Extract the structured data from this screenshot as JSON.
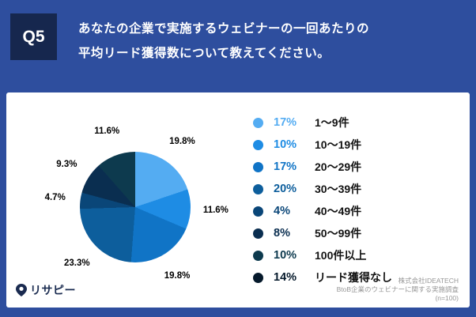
{
  "theme": {
    "background": "#2E4E9E",
    "badge_background": "#16274E",
    "card_background": "#FFFFFF"
  },
  "header": {
    "q_label": "Q5",
    "question_line1": "あなたの企業で実施するウェビナーの一回あたりの",
    "question_line2": "平均リード獲得数について教えてください。"
  },
  "chart_data": {
    "type": "pie",
    "title": "あなたの企業で実施するウェビナーの一回あたりの平均リード獲得数について教えてください。",
    "legend_position": "right",
    "legend": [
      {
        "pct": "17%",
        "label": "1〜9件",
        "color": "#54ACF2"
      },
      {
        "pct": "10%",
        "label": "10〜19件",
        "color": "#1E8CE4"
      },
      {
        "pct": "17%",
        "label": "20〜29件",
        "color": "#1074C6"
      },
      {
        "pct": "20%",
        "label": "30〜39件",
        "color": "#0D5E9C"
      },
      {
        "pct": "4%",
        "label": "40〜49件",
        "color": "#0A4678"
      },
      {
        "pct": "8%",
        "label": "50〜99件",
        "color": "#0A2E50"
      },
      {
        "pct": "10%",
        "label": "100件以上",
        "color": "#0D3A4E"
      },
      {
        "pct": "14%",
        "label": "リード獲得なし",
        "color": "#05192B"
      }
    ],
    "pie_slices": [
      {
        "value": 19.8,
        "label": "19.8%",
        "color": "#54ACF2"
      },
      {
        "value": 11.6,
        "label": "11.6%",
        "color": "#1E8CE4"
      },
      {
        "value": 19.8,
        "label": "19.8%",
        "color": "#1074C6"
      },
      {
        "value": 23.3,
        "label": "23.3%",
        "color": "#0D5E9C"
      },
      {
        "value": 4.7,
        "label": "4.7%",
        "color": "#0A4678"
      },
      {
        "value": 9.3,
        "label": "9.3%",
        "color": "#0A2E50"
      },
      {
        "value": 11.6,
        "label": "11.6%",
        "color": "#0D3A4E"
      }
    ]
  },
  "footer": {
    "logo_icon": "pin-icon",
    "logo_text": "リサピー",
    "credit_company": "株式会社IDEATECH",
    "credit_survey": "BtoB企業のウェビナーに関する実施調査",
    "credit_n": "(n=100)"
  }
}
